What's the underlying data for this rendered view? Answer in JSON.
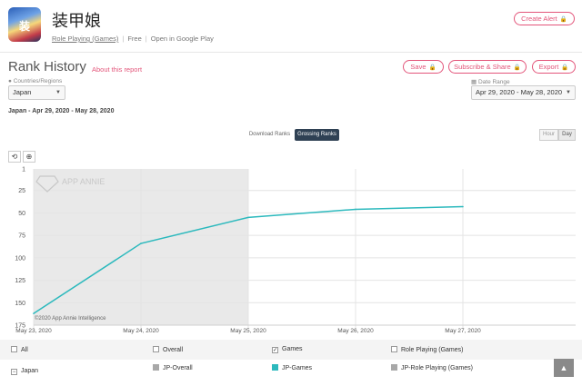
{
  "app": {
    "title": "装甲娘",
    "category": "Role Playing (Games)",
    "price": "Free",
    "store_link": "Open in Google Play",
    "sep": "|",
    "icon_text": "装"
  },
  "actions": {
    "create_alert": "Create Alert",
    "save": "Save",
    "subscribe_share": "Subscribe & Share",
    "export": "Export",
    "lock_icon": "🔒"
  },
  "page": {
    "title": "Rank History",
    "about_link": "About this report",
    "date_caption": "Japan - Apr 29, 2020 - May 28, 2020"
  },
  "filters": {
    "countries_label": "Countries/Regions",
    "country_value": "Japan",
    "date_label": "Date Range",
    "date_value": "Apr 29, 2020 - May 28, 2020",
    "caret": "▼"
  },
  "rank_tabs": {
    "download": "Download Ranks",
    "grossing": "Grossing Ranks"
  },
  "granularity": {
    "hour": "Hour",
    "day": "Day"
  },
  "tools": {
    "reset": "⟲",
    "zoom": "⊕"
  },
  "legend": {
    "all": "All",
    "overall": "Overall",
    "games": "Games",
    "role_playing": "Role Playing (Games)",
    "country": "Japan",
    "jp_overall": "JP-Overall",
    "jp_games": "JP-Games",
    "jp_role_playing": "JP-Role Playing (Games)",
    "check_mark": "✓",
    "minus_mark": "−",
    "gray_color": "#a8a8a8",
    "teal_color": "#2cb9bd"
  },
  "scroll_top": "▲",
  "chart_data": {
    "type": "line",
    "x_ticks": [
      "May 23, 2020",
      "May 24, 2020",
      "May 25, 2020",
      "May 26, 2020",
      "May 27, 2020"
    ],
    "y_ticks": [
      "1",
      "25",
      "50",
      "75",
      "100",
      "125",
      "150",
      "175"
    ],
    "y_tick_values": [
      1,
      25,
      50,
      75,
      100,
      125,
      150,
      175
    ],
    "ylim": [
      1,
      175
    ],
    "y_inverted": true,
    "watermark": "APP ANNIE",
    "copyright": "©2020 App Annie Intelligence",
    "series": [
      {
        "name": "JP-Games",
        "color": "#2cb9bd",
        "x": [
          "May 23, 2020",
          "May 24, 2020",
          "May 25, 2020",
          "May 26, 2020",
          "May 27, 2020"
        ],
        "values": [
          162,
          84,
          55,
          46,
          43
        ]
      }
    ]
  }
}
